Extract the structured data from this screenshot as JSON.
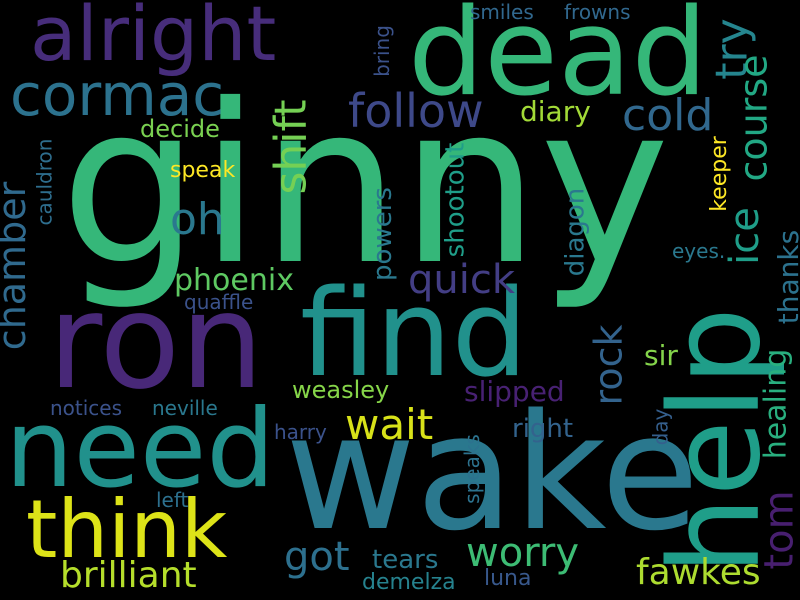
{
  "background": "#000000",
  "words": [
    {
      "text": "ginny",
      "color": "#35b779"
    },
    {
      "text": "wake",
      "color": "#2a788e"
    },
    {
      "text": "ron",
      "color": "#482878"
    },
    {
      "text": "find",
      "color": "#21918c"
    },
    {
      "text": "help",
      "color": "#1f9e89"
    },
    {
      "text": "need",
      "color": "#21918c"
    },
    {
      "text": "dead",
      "color": "#35b779"
    },
    {
      "text": "think",
      "color": "#dde318"
    },
    {
      "text": "alright",
      "color": "#472d7b"
    },
    {
      "text": "cormac",
      "color": "#2c728e"
    },
    {
      "text": "follow",
      "color": "#3e4989"
    },
    {
      "text": "cold",
      "color": "#31688e"
    },
    {
      "text": "try",
      "color": "#25858e"
    },
    {
      "text": "course",
      "color": "#22a884"
    },
    {
      "text": "ice",
      "color": "#1f9e89"
    },
    {
      "text": "shift",
      "color": "#75d054"
    },
    {
      "text": "oh",
      "color": "#2a788e"
    },
    {
      "text": "chamber",
      "color": "#306a8e"
    },
    {
      "text": "phoenix",
      "color": "#5ec962"
    },
    {
      "text": "quick",
      "color": "#433e85"
    },
    {
      "text": "rock",
      "color": "#33638d"
    },
    {
      "text": "wait",
      "color": "#d8e219"
    },
    {
      "text": "got",
      "color": "#2d708e"
    },
    {
      "text": "worry",
      "color": "#3dbc74"
    },
    {
      "text": "brilliant",
      "color": "#b5de2b"
    },
    {
      "text": "fawkes",
      "color": "#addc30"
    },
    {
      "text": "tom",
      "color": "#481f70"
    },
    {
      "text": "healing",
      "color": "#29af7f"
    },
    {
      "text": "thanks",
      "color": "#2c728e"
    },
    {
      "text": "diary",
      "color": "#a2da37"
    },
    {
      "text": "decide",
      "color": "#7ad151"
    },
    {
      "text": "speak",
      "color": "#fde725"
    },
    {
      "text": "keeper",
      "color": "#fde725"
    },
    {
      "text": "powers",
      "color": "#2a788e"
    },
    {
      "text": "shootout",
      "color": "#1f9e89"
    },
    {
      "text": "diagon",
      "color": "#2a788e"
    },
    {
      "text": "eyes.",
      "color": "#2a788e"
    },
    {
      "text": "sir",
      "color": "#84d44b"
    },
    {
      "text": "weasley",
      "color": "#86d549"
    },
    {
      "text": "slipped",
      "color": "#482173"
    },
    {
      "text": "right",
      "color": "#33638d"
    },
    {
      "text": "harry",
      "color": "#3b528b"
    },
    {
      "text": "day",
      "color": "#355f8d"
    },
    {
      "text": "speaks",
      "color": "#2c728e"
    },
    {
      "text": "tears",
      "color": "#2a788e"
    },
    {
      "text": "demelza",
      "color": "#26828e"
    },
    {
      "text": "luna",
      "color": "#38588c"
    },
    {
      "text": "left",
      "color": "#2d708e"
    },
    {
      "text": "notices",
      "color": "#3b528b"
    },
    {
      "text": "neville",
      "color": "#2a788e"
    },
    {
      "text": "quaffle",
      "color": "#3b528b"
    },
    {
      "text": "cauldron",
      "color": "#2e6e8e"
    },
    {
      "text": "bring",
      "color": "#3b528b"
    },
    {
      "text": "smiles",
      "color": "#31688e"
    },
    {
      "text": "frowns",
      "color": "#31688e"
    }
  ]
}
